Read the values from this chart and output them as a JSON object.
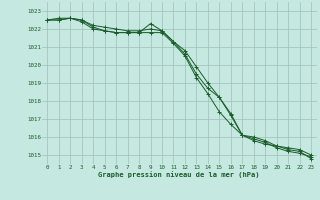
{
  "title": "Graphe pression niveau de la mer (hPa)",
  "bg_color": "#c5e8e0",
  "grid_color": "#9dbfb8",
  "line_color": "#1a5c2a",
  "xlim": [
    -0.5,
    23.5
  ],
  "ylim": [
    1014.5,
    1023.5
  ],
  "yticks": [
    1015,
    1016,
    1017,
    1018,
    1019,
    1020,
    1021,
    1022,
    1023
  ],
  "xticks": [
    0,
    1,
    2,
    3,
    4,
    5,
    6,
    7,
    8,
    9,
    10,
    11,
    12,
    13,
    14,
    15,
    16,
    17,
    18,
    19,
    20,
    21,
    22,
    23
  ],
  "series": [
    [
      1022.5,
      1022.6,
      1022.6,
      1022.5,
      1022.2,
      1022.1,
      1022.0,
      1021.9,
      1021.9,
      1022.0,
      1021.9,
      1021.3,
      1020.6,
      1019.5,
      1018.7,
      1018.2,
      1017.2,
      1016.1,
      1016.0,
      1015.8,
      1015.5,
      1015.3,
      1015.2,
      1014.8
    ],
    [
      1022.5,
      1022.5,
      1022.6,
      1022.5,
      1022.1,
      1021.9,
      1021.8,
      1021.8,
      1021.8,
      1021.8,
      1021.8,
      1021.2,
      1020.5,
      1019.3,
      1018.4,
      1017.4,
      1016.7,
      1016.1,
      1015.8,
      1015.6,
      1015.5,
      1015.4,
      1015.3,
      1015.0
    ],
    [
      1022.5,
      1022.5,
      1022.6,
      1022.4,
      1022.0,
      1021.9,
      1021.8,
      1021.8,
      1021.8,
      1022.3,
      1021.9,
      1021.3,
      1020.8,
      1019.9,
      1019.0,
      1018.2,
      1017.3,
      1016.1,
      1015.9,
      1015.7,
      1015.4,
      1015.2,
      1015.1,
      1014.9
    ]
  ]
}
